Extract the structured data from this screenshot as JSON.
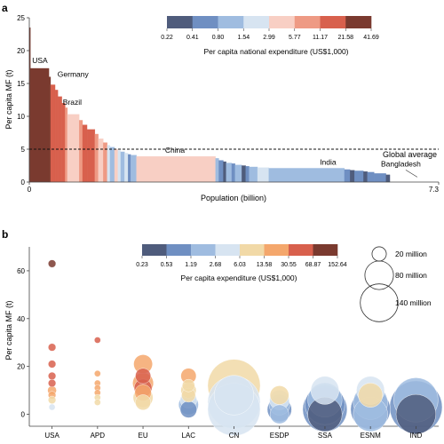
{
  "panels": {
    "a_label": "a",
    "b_label": "b"
  },
  "colors": {
    "scale_a": [
      "#4f5c7c",
      "#6f8fc2",
      "#9fbce0",
      "#d7e4f1",
      "#f8cfc4",
      "#ee9a84",
      "#d8604d",
      "#7a3a2f"
    ],
    "scale_b": [
      "#4f5c7c",
      "#6f8fc2",
      "#9fbce0",
      "#d7e4f1",
      "#f1d9a7",
      "#f4a76c",
      "#d8604d",
      "#7a3a2f"
    ]
  },
  "chart_data": [
    {
      "type": "bar",
      "subtype": "variable-width",
      "ylabel": "Per capita MF (t)",
      "xlabel": "Population (billion)",
      "xlim": [
        0,
        7.3
      ],
      "ylim": [
        0,
        25
      ],
      "yticks": [
        0,
        5,
        10,
        15,
        20,
        25
      ],
      "xtick_labels": [
        "0",
        "7.3"
      ],
      "reference_line": {
        "label": "Global average",
        "y": 5.0
      },
      "colorbar": {
        "title": "Per capita national expenditure (US$1,000)",
        "ticks": [
          "0.22",
          "0.41",
          "0.80",
          "1.54",
          "2.99",
          "5.77",
          "11.17",
          "21.58",
          "41.69"
        ]
      },
      "annotations": [
        {
          "text": "USA",
          "x": 0.05,
          "y": 17.3
        },
        {
          "text": "Germany",
          "x": 0.44,
          "y": 14.8
        },
        {
          "text": "Brazil",
          "x": 0.63,
          "y": 10.7
        },
        {
          "text": "China",
          "x": 2.2,
          "y": 3.9
        },
        {
          "text": "India",
          "x": 5.15,
          "y": 2.1
        },
        {
          "text": "Bangladesh",
          "x": 6.95,
          "y": 1.3
        }
      ],
      "segments": [
        {
          "w": 0.02,
          "y": 23.5,
          "c": 7
        },
        {
          "w": 0.33,
          "y": 17.3,
          "c": 7
        },
        {
          "w": 0.03,
          "y": 16.0,
          "c": 7
        },
        {
          "w": 0.08,
          "y": 14.8,
          "c": 6
        },
        {
          "w": 0.05,
          "y": 14.0,
          "c": 6
        },
        {
          "w": 0.07,
          "y": 13.0,
          "c": 6
        },
        {
          "w": 0.06,
          "y": 12.0,
          "c": 6
        },
        {
          "w": 0.04,
          "y": 11.3,
          "c": 5
        },
        {
          "w": 0.21,
          "y": 10.3,
          "c": 4
        },
        {
          "w": 0.06,
          "y": 9.4,
          "c": 5
        },
        {
          "w": 0.08,
          "y": 8.7,
          "c": 6
        },
        {
          "w": 0.14,
          "y": 8.0,
          "c": 6
        },
        {
          "w": 0.06,
          "y": 7.3,
          "c": 5
        },
        {
          "w": 0.09,
          "y": 6.6,
          "c": 4
        },
        {
          "w": 0.07,
          "y": 6.0,
          "c": 5
        },
        {
          "w": 0.05,
          "y": 5.6,
          "c": 3
        },
        {
          "w": 0.08,
          "y": 5.3,
          "c": 2
        },
        {
          "w": 0.06,
          "y": 5.0,
          "c": 4
        },
        {
          "w": 0.05,
          "y": 4.8,
          "c": 3
        },
        {
          "w": 0.07,
          "y": 4.6,
          "c": 2
        },
        {
          "w": 0.06,
          "y": 4.4,
          "c": 3
        },
        {
          "w": 0.05,
          "y": 4.2,
          "c": 1
        },
        {
          "w": 0.1,
          "y": 4.1,
          "c": 2
        },
        {
          "w": 1.41,
          "y": 3.9,
          "c": 4
        },
        {
          "w": 0.06,
          "y": 3.6,
          "c": 2
        },
        {
          "w": 0.08,
          "y": 3.3,
          "c": 1
        },
        {
          "w": 0.05,
          "y": 3.1,
          "c": 0
        },
        {
          "w": 0.1,
          "y": 2.9,
          "c": 2
        },
        {
          "w": 0.06,
          "y": 2.8,
          "c": 1
        },
        {
          "w": 0.12,
          "y": 2.6,
          "c": 2
        },
        {
          "w": 0.07,
          "y": 2.5,
          "c": 0
        },
        {
          "w": 0.06,
          "y": 2.4,
          "c": 1
        },
        {
          "w": 0.15,
          "y": 2.3,
          "c": 2
        },
        {
          "w": 0.2,
          "y": 2.2,
          "c": 3
        },
        {
          "w": 1.35,
          "y": 2.1,
          "c": 2
        },
        {
          "w": 0.1,
          "y": 1.9,
          "c": 1
        },
        {
          "w": 0.08,
          "y": 1.8,
          "c": 0
        },
        {
          "w": 0.16,
          "y": 1.7,
          "c": 1
        },
        {
          "w": 0.07,
          "y": 1.6,
          "c": 0
        },
        {
          "w": 0.12,
          "y": 1.5,
          "c": 1
        },
        {
          "w": 0.21,
          "y": 1.3,
          "c": 1
        },
        {
          "w": 0.07,
          "y": 1.1,
          "c": 0
        }
      ]
    },
    {
      "type": "scatter",
      "subtype": "bubble",
      "ylabel": "Per capita MF (t)",
      "ylim": [
        -5,
        70
      ],
      "yticks": [
        0,
        20,
        40,
        60
      ],
      "categories": [
        "USA",
        "APD",
        "EU",
        "LAC",
        "CN",
        "ESDP",
        "SSA",
        "ESNM",
        "IND"
      ],
      "colorbar": {
        "title": "Per capita  expenditure (US$1,000)",
        "ticks": [
          "0.23",
          "0.53",
          "1.19",
          "2.68",
          "6.03",
          "13.58",
          "30.55",
          "68.87",
          "152.64"
        ]
      },
      "size_legend": [
        {
          "label": "20 million",
          "value": 20
        },
        {
          "label": "80 million",
          "value": 80
        },
        {
          "label": "140 million",
          "value": 140
        }
      ],
      "bubbles": [
        {
          "cat": 0,
          "y": 63,
          "s": 3,
          "c": 7
        },
        {
          "cat": 0,
          "y": 28,
          "s": 3,
          "c": 6
        },
        {
          "cat": 0,
          "y": 21,
          "s": 3,
          "c": 6
        },
        {
          "cat": 0,
          "y": 16,
          "s": 3,
          "c": 6
        },
        {
          "cat": 0,
          "y": 13,
          "s": 3,
          "c": 6
        },
        {
          "cat": 0,
          "y": 10,
          "s": 4,
          "c": 5
        },
        {
          "cat": 0,
          "y": 8,
          "s": 3,
          "c": 5
        },
        {
          "cat": 0,
          "y": 6,
          "s": 3,
          "c": 4
        },
        {
          "cat": 0,
          "y": 3,
          "s": 2,
          "c": 3
        },
        {
          "cat": 1,
          "y": 31,
          "s": 2,
          "c": 6
        },
        {
          "cat": 1,
          "y": 17,
          "s": 2,
          "c": 5
        },
        {
          "cat": 1,
          "y": 13,
          "s": 2,
          "c": 5
        },
        {
          "cat": 1,
          "y": 11,
          "s": 2,
          "c": 5
        },
        {
          "cat": 1,
          "y": 9,
          "s": 2,
          "c": 5
        },
        {
          "cat": 1,
          "y": 7,
          "s": 2,
          "c": 4
        },
        {
          "cat": 1,
          "y": 5,
          "s": 2,
          "c": 4
        },
        {
          "cat": 2,
          "y": 21,
          "s": 18,
          "c": 5
        },
        {
          "cat": 2,
          "y": 16,
          "s": 12,
          "c": 6
        },
        {
          "cat": 2,
          "y": 13,
          "s": 22,
          "c": 5
        },
        {
          "cat": 2,
          "y": 11,
          "s": 16,
          "c": 6
        },
        {
          "cat": 2,
          "y": 9,
          "s": 14,
          "c": 5
        },
        {
          "cat": 2,
          "y": 7,
          "s": 20,
          "c": 4
        },
        {
          "cat": 2,
          "y": 5,
          "s": 12,
          "c": 4
        },
        {
          "cat": 3,
          "y": 16,
          "s": 12,
          "c": 5
        },
        {
          "cat": 3,
          "y": 12,
          "s": 8,
          "c": 4
        },
        {
          "cat": 3,
          "y": 10,
          "s": 12,
          "c": 4
        },
        {
          "cat": 3,
          "y": 8,
          "s": 10,
          "c": 4
        },
        {
          "cat": 3,
          "y": 6,
          "s": 14,
          "c": 3
        },
        {
          "cat": 3,
          "y": 4,
          "s": 20,
          "c": 2
        },
        {
          "cat": 3,
          "y": 2,
          "s": 14,
          "c": 1
        },
        {
          "cat": 4,
          "y": 12,
          "s": 140,
          "c": 4
        },
        {
          "cat": 4,
          "y": 8,
          "s": 80,
          "c": 3
        },
        {
          "cat": 4,
          "y": 5,
          "s": 140,
          "c": 3
        },
        {
          "cat": 4,
          "y": 2,
          "s": 140,
          "c": 3
        },
        {
          "cat": 5,
          "y": 8,
          "s": 18,
          "c": 4
        },
        {
          "cat": 5,
          "y": 6,
          "s": 20,
          "c": 3
        },
        {
          "cat": 5,
          "y": 4,
          "s": 22,
          "c": 2
        },
        {
          "cat": 5,
          "y": 2,
          "s": 30,
          "c": 1
        },
        {
          "cat": 5,
          "y": 0,
          "s": 18,
          "c": 2
        },
        {
          "cat": 6,
          "y": 10,
          "s": 40,
          "c": 3
        },
        {
          "cat": 6,
          "y": 6,
          "s": 60,
          "c": 2
        },
        {
          "cat": 6,
          "y": 4,
          "s": 80,
          "c": 1
        },
        {
          "cat": 6,
          "y": 2,
          "s": 100,
          "c": 1
        },
        {
          "cat": 6,
          "y": 0,
          "s": 60,
          "c": 0
        },
        {
          "cat": 7,
          "y": 10,
          "s": 40,
          "c": 3
        },
        {
          "cat": 7,
          "y": 8,
          "s": 30,
          "c": 4
        },
        {
          "cat": 7,
          "y": 5,
          "s": 60,
          "c": 2
        },
        {
          "cat": 7,
          "y": 2,
          "s": 80,
          "c": 1
        },
        {
          "cat": 7,
          "y": 0,
          "s": 60,
          "c": 2
        },
        {
          "cat": 8,
          "y": 6,
          "s": 100,
          "c": 2
        },
        {
          "cat": 8,
          "y": 3,
          "s": 140,
          "c": 1
        },
        {
          "cat": 8,
          "y": 0,
          "s": 80,
          "c": 0
        }
      ]
    }
  ]
}
